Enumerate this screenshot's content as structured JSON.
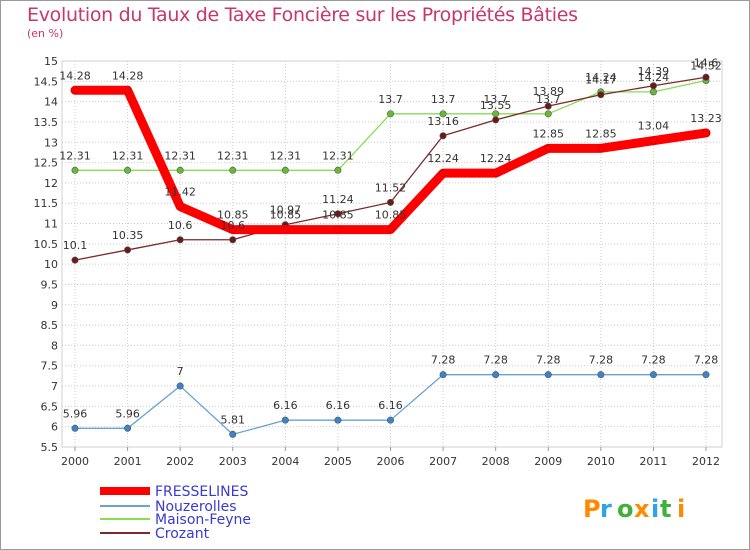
{
  "title": "Evolution du Taux de Taxe Foncière sur les Propriétés Bâties",
  "subtitle": "(en %)",
  "logo": "Proxiti",
  "chart_data": {
    "type": "line",
    "title": "Evolution du Taux de Taxe Foncière sur les Propriétés Bâties",
    "ylabel": "(en %)",
    "x": [
      "2000",
      "2001",
      "2002",
      "2003",
      "2004",
      "2005",
      "2006",
      "2007",
      "2008",
      "2009",
      "2010",
      "2011",
      "2012"
    ],
    "ylim": [
      5.5,
      15
    ],
    "yticks": [
      "5.5",
      "6",
      "6.5",
      "7",
      "7.5",
      "8",
      "8.5",
      "9",
      "9.5",
      "10",
      "10.5",
      "11",
      "11.5",
      "12",
      "12.5",
      "13",
      "13.5",
      "14",
      "14.5",
      "15"
    ],
    "legend_position": "bottom-left",
    "series": [
      {
        "name": "FRESSELINES",
        "color": "#ff0000",
        "marker": "#ff0000",
        "weight": "bold",
        "values": [
          14.28,
          14.28,
          11.42,
          10.85,
          10.85,
          10.85,
          10.85,
          12.24,
          12.24,
          12.85,
          12.85,
          13.04,
          13.23
        ],
        "labels": [
          "14.28",
          "14.28",
          "11.42",
          "10.85",
          "10.85",
          "10.85",
          "10.85",
          "12.24",
          "12.24",
          "12.85",
          "12.85",
          "13.04",
          "13.23"
        ]
      },
      {
        "name": "Nouzerolles",
        "color": "#6aa2d2",
        "marker": "#3a85c9",
        "weight": "thin",
        "values": [
          5.96,
          5.96,
          7,
          5.81,
          6.16,
          6.16,
          6.16,
          7.28,
          7.28,
          7.28,
          7.28,
          7.28,
          7.28
        ],
        "labels": [
          "5.96",
          "5.96",
          "7",
          "5.81",
          "6.16",
          "6.16",
          "6.16",
          "7.28",
          "7.28",
          "7.28",
          "7.28",
          "7.28",
          "7.28"
        ]
      },
      {
        "name": "Maison-Feyne",
        "color": "#88dd55",
        "marker": "#66bb33",
        "weight": "thin",
        "values": [
          12.31,
          12.31,
          12.31,
          12.31,
          12.31,
          12.31,
          13.7,
          13.7,
          13.7,
          13.7,
          14.24,
          14.24,
          14.52
        ],
        "labels": [
          "12.31",
          "12.31",
          "12.31",
          "12.31",
          "12.31",
          "12.31",
          "13.7",
          "13.7",
          "13.7",
          "13.7",
          "14.24",
          "14.24",
          "14.52"
        ]
      },
      {
        "name": "Crozant",
        "color": "#7b2a2a",
        "marker": "#6a1a1a",
        "weight": "thin",
        "values": [
          10.1,
          10.35,
          10.6,
          10.6,
          10.97,
          11.24,
          11.52,
          13.16,
          13.55,
          13.89,
          14.17,
          14.39,
          14.6
        ],
        "labels": [
          "10.1",
          "10.35",
          "10.6",
          "10.6",
          "10.97",
          "11.24",
          "11.52",
          "13.16",
          "13.55",
          "13.89",
          "14.17",
          "14.39",
          "14.6"
        ]
      }
    ]
  }
}
